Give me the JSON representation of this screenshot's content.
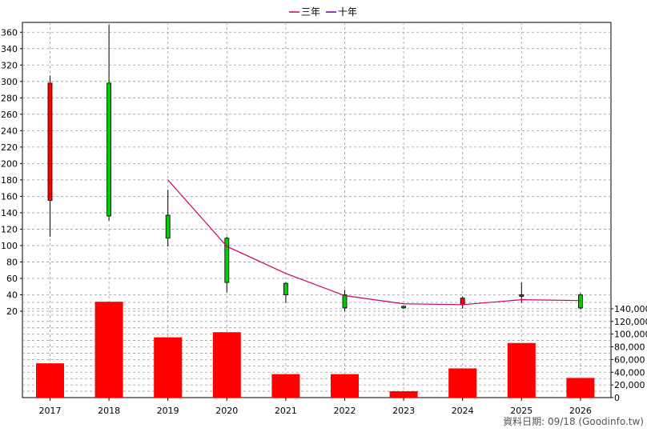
{
  "chart_data": {
    "type": "candlestick+bar",
    "years": [
      "2017",
      "2018",
      "2019",
      "2020",
      "2021",
      "2022",
      "2023",
      "2024",
      "2025",
      "2026"
    ],
    "candles": [
      {
        "year": "2017",
        "open": 155,
        "close": 298,
        "high": 307,
        "low": 111
      },
      {
        "year": "2018",
        "open": 298,
        "close": 136,
        "high": 369,
        "low": 130
      },
      {
        "year": "2019",
        "open": 137,
        "close": 109,
        "high": 168,
        "low": 99
      },
      {
        "year": "2020",
        "open": 109,
        "close": 55,
        "high": 111,
        "low": 43
      },
      {
        "year": "2021",
        "open": 54,
        "close": 40,
        "high": 55,
        "low": 30
      },
      {
        "year": "2022",
        "open": 40,
        "close": 24,
        "high": 46,
        "low": 20
      },
      {
        "year": "2023",
        "open": 26,
        "close": 25,
        "high": 27,
        "low": 23
      },
      {
        "year": "2024",
        "open": 28,
        "close": 36,
        "high": 38,
        "low": 23
      },
      {
        "year": "2025",
        "open": 39,
        "close": 40,
        "high": 55,
        "low": 30
      },
      {
        "year": "2026",
        "open": 40,
        "close": 24,
        "high": 42,
        "low": 22
      }
    ],
    "ma3": {
      "name": "三年",
      "color": "#cc0066",
      "points": [
        [
          "2019",
          180
        ],
        [
          "2020",
          99
        ],
        [
          "2021",
          66
        ],
        [
          "2022",
          39
        ],
        [
          "2023",
          29
        ],
        [
          "2024",
          28
        ],
        [
          "2025",
          34
        ],
        [
          "2026",
          33
        ]
      ]
    },
    "ma10": {
      "name": "十年",
      "color": "#660099",
      "points": []
    },
    "volume": [
      54000,
      151000,
      95000,
      103000,
      37000,
      37000,
      10000,
      46000,
      86000,
      31000
    ],
    "price_axis": {
      "min": 20,
      "max": 370,
      "ticks": [
        20,
        40,
        60,
        80,
        100,
        120,
        140,
        160,
        180,
        200,
        220,
        240,
        260,
        280,
        300,
        320,
        340,
        360
      ]
    },
    "volume_axis": {
      "min": 0,
      "max": 155000,
      "ticks": [
        "0",
        "20,000",
        "40,000",
        "60,000",
        "80,000",
        "100,000",
        "120,000",
        "140,000"
      ],
      "tick_values": [
        0,
        20000,
        40000,
        60000,
        80000,
        100000,
        120000,
        140000
      ]
    },
    "legend_position": "top-center",
    "grid": true,
    "colors": {
      "up": "#ff0000",
      "down": "#00cc00",
      "volume": "#ff0000",
      "grid": "#999999"
    }
  },
  "source_label": "資料日期: 09/18 (Goodinfo.tw)"
}
